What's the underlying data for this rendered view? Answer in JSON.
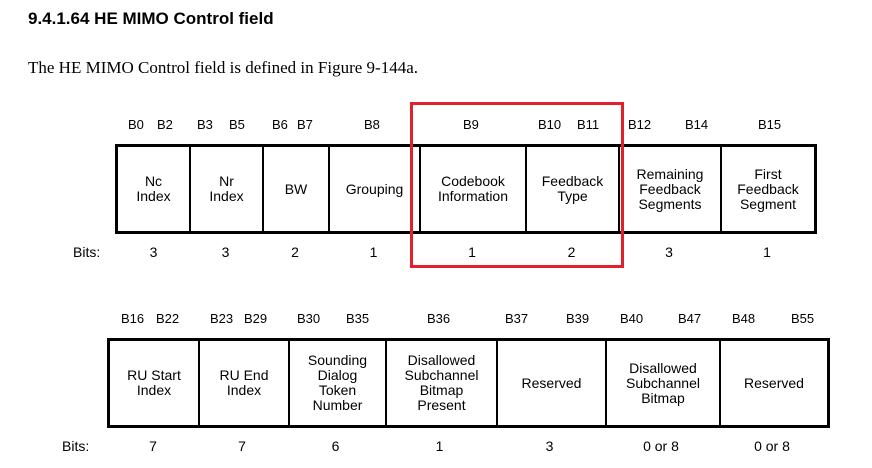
{
  "heading": "9.4.1.64 HE MIMO Control field",
  "intro": "The HE MIMO Control field is defined in Figure 9-144a.",
  "bits_caption": "Bits:",
  "row1": {
    "bit_labels": [
      "B0",
      "B2",
      "B3",
      "B5",
      "B6",
      "B7",
      "B8",
      "B9",
      "B10",
      "B11",
      "B12",
      "B14",
      "B15"
    ],
    "fields": [
      {
        "name": "Nc\nIndex",
        "bits": "3"
      },
      {
        "name": "Nr\nIndex",
        "bits": "3"
      },
      {
        "name": "BW",
        "bits": "2"
      },
      {
        "name": "Grouping",
        "bits": "1"
      },
      {
        "name": "Codebook\nInformation",
        "bits": "1"
      },
      {
        "name": "Feedback\nType",
        "bits": "2"
      },
      {
        "name": "Remaining\nFeedback\nSegments",
        "bits": "3"
      },
      {
        "name": "First\nFeedback\nSegment",
        "bits": "1"
      }
    ]
  },
  "row2": {
    "bit_labels": [
      "B16",
      "B22",
      "B23",
      "B29",
      "B30",
      "B35",
      "B36",
      "B37",
      "B39",
      "B40",
      "B47",
      "B48",
      "B55"
    ],
    "fields": [
      {
        "name": "RU Start\nIndex",
        "bits": "7"
      },
      {
        "name": "RU End\nIndex",
        "bits": "7"
      },
      {
        "name": "Sounding\nDialog\nToken\nNumber",
        "bits": "6"
      },
      {
        "name": "Disallowed\nSubchannel\nBitmap\nPresent",
        "bits": "1"
      },
      {
        "name": "Reserved",
        "bits": "3"
      },
      {
        "name": "Disallowed\nSubchannel\nBitmap",
        "bits": "0 or 8"
      },
      {
        "name": "Reserved",
        "bits": "0 or 8"
      }
    ]
  },
  "highlight_color": "#e0202a"
}
